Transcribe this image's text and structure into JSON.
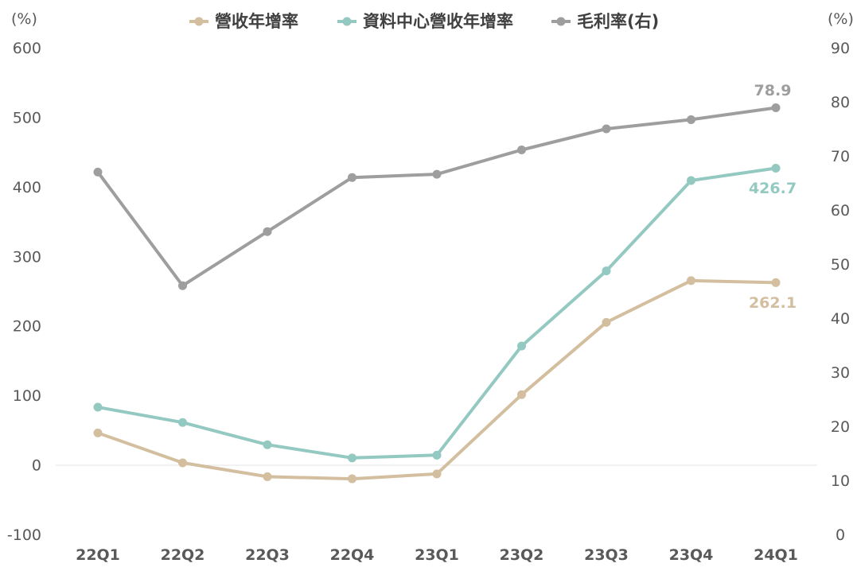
{
  "chart_data": {
    "type": "line",
    "categories": [
      "22Q1",
      "22Q2",
      "22Q3",
      "22Q4",
      "23Q1",
      "23Q2",
      "23Q3",
      "23Q4",
      "24Q1"
    ],
    "y_left": {
      "unit": "(%)",
      "min": -100,
      "max": 600,
      "ticks": [
        "600",
        "500",
        "400",
        "300",
        "200",
        "100",
        "0",
        "-100"
      ]
    },
    "y_right": {
      "unit": "(%)",
      "min": 0,
      "max": 90,
      "ticks": [
        "90",
        "80",
        "70",
        "60",
        "50",
        "40",
        "30",
        "20",
        "10",
        "0"
      ]
    },
    "zero_line": true,
    "legend_position": "top",
    "series": [
      {
        "name": "營收年增率",
        "axis": "left",
        "color": "#d3bf9f",
        "values": [
          46,
          3,
          -17,
          -20,
          -13,
          101,
          205,
          265,
          262.1
        ],
        "last_label": "262.1"
      },
      {
        "name": "資料中心營收年增率",
        "axis": "left",
        "color": "#93c9c1",
        "values": [
          83,
          61,
          29,
          10,
          14,
          171,
          279,
          409,
          426.7
        ],
        "last_label": "426.7"
      },
      {
        "name": "毛利率(右)",
        "axis": "right",
        "color": "#9e9e9e",
        "values": [
          67,
          46,
          56,
          66,
          66.6,
          71.1,
          75,
          76.7,
          78.9
        ],
        "last_label": "78.9"
      }
    ]
  }
}
